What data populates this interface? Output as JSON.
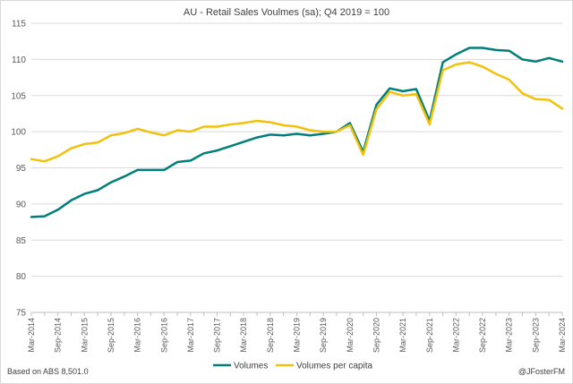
{
  "footer": {
    "source": "Based on ABS 8,501.0",
    "credit": "@JFosterFM"
  },
  "chart_data": {
    "type": "line",
    "title": "AU - Retail Sales Voulmes (sa); Q4 2019 = 100",
    "xlabel": "",
    "ylabel": "",
    "ylim": [
      75,
      115
    ],
    "yticks": [
      75,
      80,
      85,
      90,
      95,
      100,
      105,
      110,
      115
    ],
    "grid": true,
    "legend_position": "bottom",
    "x": [
      "Mar-2014",
      "Jun-2014",
      "Sep-2014",
      "Dec-2014",
      "Mar-2015",
      "Jun-2015",
      "Sep-2015",
      "Dec-2015",
      "Mar-2016",
      "Jun-2016",
      "Sep-2016",
      "Dec-2016",
      "Mar-2017",
      "Jun-2017",
      "Sep-2017",
      "Dec-2017",
      "Mar-2018",
      "Jun-2018",
      "Sep-2018",
      "Dec-2018",
      "Mar-2019",
      "Jun-2019",
      "Sep-2019",
      "Dec-2019",
      "Mar-2020",
      "Jun-2020",
      "Sep-2020",
      "Dec-2020",
      "Mar-2021",
      "Jun-2021",
      "Sep-2021",
      "Dec-2021",
      "Mar-2022",
      "Jun-2022",
      "Sep-2022",
      "Dec-2022",
      "Mar-2023",
      "Jun-2023",
      "Sep-2023",
      "Dec-2023",
      "Mar-2024"
    ],
    "x_tick_labels": [
      "Mar-2014",
      "Sep-2014",
      "Mar-2015",
      "Sep-2015",
      "Mar-2016",
      "Sep-2016",
      "Mar-2017",
      "Sep-2017",
      "Mar-2018",
      "Sep-2018",
      "Mar-2019",
      "Sep-2019",
      "Mar-2020",
      "Sep-2020",
      "Mar-2021",
      "Sep-2021",
      "Mar-2022",
      "Sep-2022",
      "Mar-2023",
      "Sep-2023",
      "Mar-2024"
    ],
    "series": [
      {
        "name": "Volumes",
        "color": "#007f7a",
        "values": [
          88.2,
          88.3,
          89.2,
          90.5,
          91.4,
          91.9,
          93.0,
          93.8,
          94.7,
          94.7,
          94.7,
          95.8,
          96.0,
          97.0,
          97.4,
          98.0,
          98.6,
          99.2,
          99.6,
          99.5,
          99.7,
          99.5,
          99.7,
          100.0,
          101.2,
          97.2,
          103.7,
          106.0,
          105.6,
          105.9,
          101.5,
          109.6,
          110.7,
          111.6,
          111.6,
          111.3,
          111.2,
          110.0,
          109.7,
          110.2,
          109.7
        ]
      },
      {
        "name": "Volumes per capita",
        "color": "#f2c10b",
        "values": [
          96.2,
          95.9,
          96.6,
          97.7,
          98.3,
          98.5,
          99.5,
          99.8,
          100.4,
          99.9,
          99.5,
          100.2,
          100.0,
          100.7,
          100.7,
          101.0,
          101.2,
          101.5,
          101.3,
          100.9,
          100.7,
          100.2,
          100.0,
          100.0,
          100.9,
          96.8,
          103.1,
          105.5,
          105.0,
          105.2,
          101.0,
          108.5,
          109.3,
          109.6,
          109.0,
          108.0,
          107.2,
          105.3,
          104.5,
          104.4,
          103.2
        ]
      }
    ]
  }
}
